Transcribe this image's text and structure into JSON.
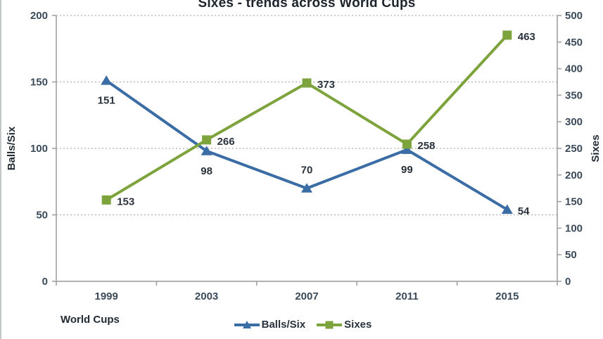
{
  "chart_data": {
    "type": "line",
    "title": "Sixes - trends across World Cups",
    "xlabel": "World Cups",
    "categories": [
      "1999",
      "2003",
      "2007",
      "2011",
      "2015"
    ],
    "series": [
      {
        "name": "Balls/Six",
        "axis": "left",
        "color": "#3a6ca5",
        "marker": "triangle",
        "values": [
          151,
          98,
          70,
          99,
          54
        ],
        "label_positions": [
          "below",
          "below",
          "above",
          "below",
          "right"
        ]
      },
      {
        "name": "Sixes",
        "axis": "right",
        "color": "#7da33c",
        "marker": "square",
        "values": [
          153,
          266,
          373,
          258,
          463
        ],
        "label_positions": [
          "right",
          "right",
          "right",
          "right",
          "right"
        ]
      }
    ],
    "left_axis": {
      "title": "Balls/Six",
      "min": 0,
      "max": 200,
      "step": 50
    },
    "right_axis": {
      "title": "Sixes",
      "min": 0,
      "max": 500,
      "step": 50
    },
    "grid": "horizontal-dashed",
    "legend_position": "bottom-center",
    "colors": {
      "axis": "#a6a6a6",
      "grid": "#b0b0b0",
      "tick_label": "#3b4a59",
      "data_label": "#2a323c"
    }
  }
}
